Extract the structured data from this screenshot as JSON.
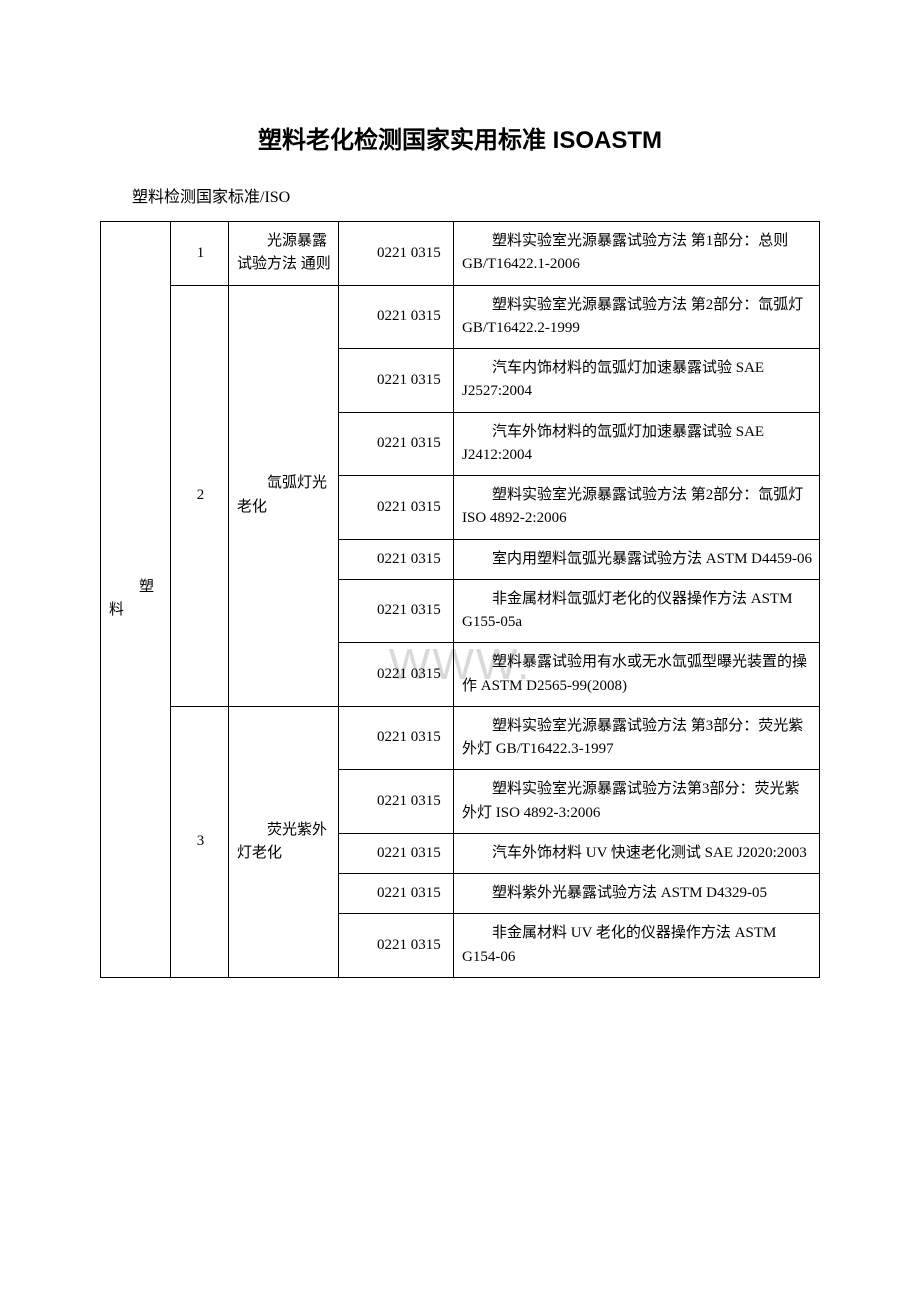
{
  "title": "塑料老化检测国家实用标准 ISOASTM",
  "subtitle": "塑料检测国家标准/ISO",
  "watermark": "WWW.",
  "category": "塑料",
  "groups": [
    {
      "num": "1",
      "test": "光源暴露试验方法 通则",
      "rows": [
        {
          "code": "0221 0315",
          "desc": "塑料实验室光源暴露试验方法 第1部分：总则 GB/T16422.1-2006"
        }
      ]
    },
    {
      "num": "2",
      "test": "氙弧灯光老化",
      "rows": [
        {
          "code": "0221 0315",
          "desc": "塑料实验室光源暴露试验方法 第2部分：氙弧灯 GB/T16422.2-1999"
        },
        {
          "code": "0221 0315",
          "desc": "汽车内饰材料的氙弧灯加速暴露试验 SAE J2527:2004"
        },
        {
          "code": "0221 0315",
          "desc": "汽车外饰材料的氙弧灯加速暴露试验 SAE J2412:2004"
        },
        {
          "code": "0221 0315",
          "desc": "塑料实验室光源暴露试验方法 第2部分：氙弧灯 ISO 4892-2:2006"
        },
        {
          "code": "0221 0315",
          "desc": "室内用塑料氙弧光暴露试验方法 ASTM D4459-06"
        },
        {
          "code": "0221 0315",
          "desc": "非金属材料氙弧灯老化的仪器操作方法 ASTM G155-05a"
        },
        {
          "code": "0221 0315",
          "desc": "塑料暴露试验用有水或无水氙弧型曝光装置的操作 ASTM D2565-99(2008)"
        }
      ]
    },
    {
      "num": "3",
      "test": "荧光紫外灯老化",
      "rows": [
        {
          "code": "0221 0315",
          "desc": "塑料实验室光源暴露试验方法 第3部分：荧光紫外灯 GB/T16422.3-1997"
        },
        {
          "code": "0221 0315",
          "desc": "塑料实验室光源暴露试验方法第3部分：荧光紫外灯 ISO 4892-3:2006"
        },
        {
          "code": "0221 0315",
          "desc": "汽车外饰材料 UV 快速老化测试 SAE J2020:2003"
        },
        {
          "code": "0221 0315",
          "desc": "塑料紫外光暴露试验方法 ASTM D4329-05"
        },
        {
          "code": "0221 0315",
          "desc": "非金属材料 UV 老化的仪器操作方法 ASTM G154-06"
        }
      ]
    }
  ]
}
